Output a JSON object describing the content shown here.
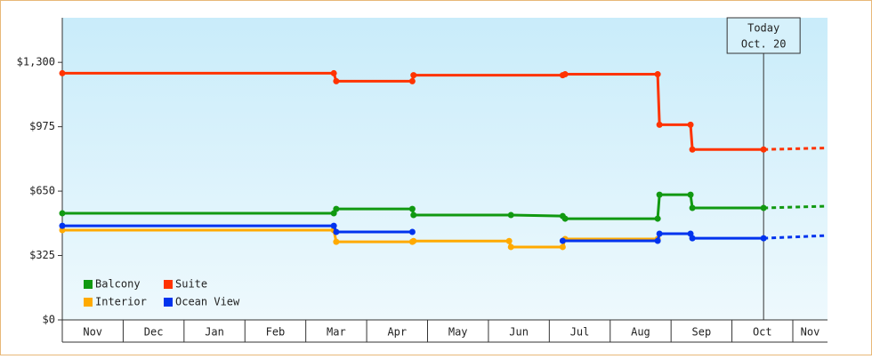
{
  "chart_data": {
    "type": "step-line",
    "categories": [
      "Nov",
      "Dec",
      "Jan",
      "Feb",
      "Mar",
      "Apr",
      "May",
      "Jun",
      "Jul",
      "Aug",
      "Sep",
      "Oct",
      "Nov"
    ],
    "xlim": [
      0,
      12.57
    ],
    "ylim": [
      0,
      1525
    ],
    "yticks": [
      {
        "value": 0,
        "label": "$0"
      },
      {
        "value": 325,
        "label": "$325"
      },
      {
        "value": 650,
        "label": "$650"
      },
      {
        "value": 975,
        "label": "$975"
      },
      {
        "value": 1300,
        "label": "$1,300"
      }
    ],
    "today": {
      "x": 11.52,
      "label": "Today",
      "date": "Oct. 20"
    },
    "legend": "bottom-left",
    "series": [
      {
        "name": "Balcony",
        "color": "#119911",
        "x": [
          0,
          4.46,
          4.5,
          5.75,
          5.77,
          7.37,
          8.22,
          8.26,
          9.78,
          9.81,
          10.32,
          10.35,
          11.52,
          12.57
        ],
        "values": [
          538,
          538,
          560,
          560,
          529,
          529,
          524,
          511,
          511,
          632,
          632,
          565,
          565,
          574
        ]
      },
      {
        "name": "Suite",
        "color": "#ff3300",
        "x": [
          0,
          4.46,
          4.5,
          5.75,
          5.77,
          8.22,
          8.26,
          9.78,
          9.81,
          10.32,
          10.35,
          11.52,
          12.57
        ],
        "values": [
          1245,
          1245,
          1205,
          1205,
          1235,
          1235,
          1240,
          1240,
          985,
          985,
          860,
          860,
          868
        ]
      },
      {
        "name": "Interior",
        "color": "#ffaa00",
        "x": [
          0,
          4.46,
          4.5,
          5.75,
          5.77,
          7.34,
          7.37,
          8.22,
          8.26,
          9.78
        ],
        "values": [
          453,
          453,
          394,
          394,
          398,
          398,
          368,
          368,
          408,
          408
        ]
      },
      {
        "name": "Ocean View",
        "color": "#0033ee",
        "x": [
          0,
          4.46,
          4.5,
          5.75,
          null,
          8.22,
          9.78,
          9.81,
          10.32,
          10.35,
          11.52,
          12.57
        ],
        "values": [
          475,
          475,
          444,
          444,
          null,
          399,
          399,
          435,
          435,
          412,
          412,
          426
        ]
      }
    ]
  }
}
